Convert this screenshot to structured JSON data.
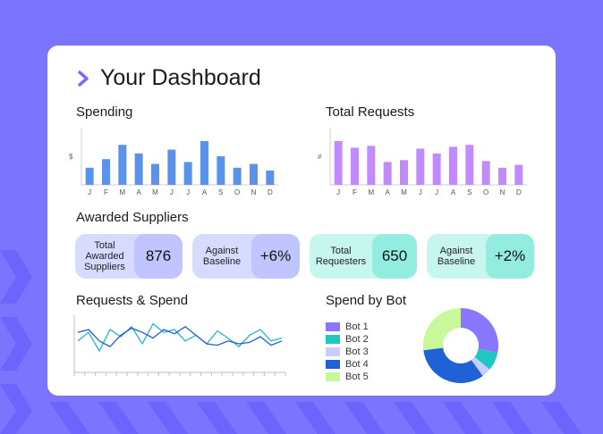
{
  "dashboard": {
    "title": "Your Dashboard"
  },
  "sections": {
    "spending": "Spending",
    "total_requests": "Total Requests",
    "awarded_suppliers": "Awarded Suppliers",
    "requests_spend": "Requests & Spend",
    "spend_by_bot": "Spend by Bot"
  },
  "stats": [
    {
      "label": "Total Awarded Suppliers",
      "value": "876",
      "bg": "#d7dbff",
      "accent": "#c0c5ff"
    },
    {
      "label": "Against Baseline",
      "value": "+6%",
      "bg": "#d7dbff",
      "accent": "#c0c5ff"
    },
    {
      "label": "Total Requesters",
      "value": "650",
      "bg": "#c7f6ef",
      "accent": "#93ece0"
    },
    {
      "label": "Against Baseline",
      "value": "+2%",
      "bg": "#c7f6ef",
      "accent": "#93ece0"
    }
  ],
  "colors": {
    "background": "#7b74ff",
    "spending_bar": "#5b93eb",
    "requests_bar": "#c18bff",
    "line_teal": "#22b8c9",
    "line_blue": "#1f5fd0"
  },
  "chart_data": [
    {
      "type": "bar",
      "name": "spending",
      "ylabel": "$",
      "categories": [
        "J",
        "F",
        "M",
        "A",
        "M",
        "J",
        "J",
        "A",
        "S",
        "O",
        "N",
        "D"
      ],
      "values": [
        18,
        27,
        42,
        33,
        22,
        37,
        24,
        46,
        30,
        18,
        22,
        15
      ],
      "ylim": [
        0,
        60
      ]
    },
    {
      "type": "bar",
      "name": "total_requests",
      "ylabel": "#",
      "categories": [
        "J",
        "F",
        "M",
        "A",
        "M",
        "J",
        "J",
        "A",
        "S",
        "O",
        "N",
        "D"
      ],
      "values": [
        46,
        39,
        41,
        24,
        26,
        38,
        33,
        40,
        42,
        25,
        18,
        21
      ],
      "ylim": [
        0,
        60
      ]
    },
    {
      "type": "line",
      "name": "requests_spend",
      "x": [
        1,
        2,
        3,
        4,
        5,
        6,
        7,
        8,
        9,
        10,
        11,
        12,
        13,
        14,
        15,
        16,
        17,
        18,
        19,
        20
      ],
      "series": [
        {
          "values": [
            22,
            28,
            15,
            30,
            25,
            32,
            20,
            34,
            28,
            30,
            22,
            26,
            20,
            29,
            24,
            18,
            26,
            30,
            22,
            24
          ],
          "color": "#22b8c9"
        },
        {
          "values": [
            28,
            30,
            22,
            18,
            26,
            31,
            28,
            24,
            30,
            27,
            32,
            26,
            20,
            19,
            22,
            20,
            21,
            25,
            19,
            22
          ],
          "color": "#1f5fd0"
        }
      ],
      "ylim": [
        0,
        40
      ]
    },
    {
      "type": "pie",
      "name": "spend_by_bot",
      "donut": true,
      "legend": "left",
      "labels": [
        "Bot 1",
        "Bot 2",
        "Bot 3",
        "Bot 4",
        "Bot 5"
      ],
      "values": [
        28,
        8,
        4,
        33,
        27
      ],
      "colors": [
        "#8a77ff",
        "#1fc7c0",
        "#c8cdff",
        "#1f62d6",
        "#c7f99a"
      ]
    }
  ]
}
